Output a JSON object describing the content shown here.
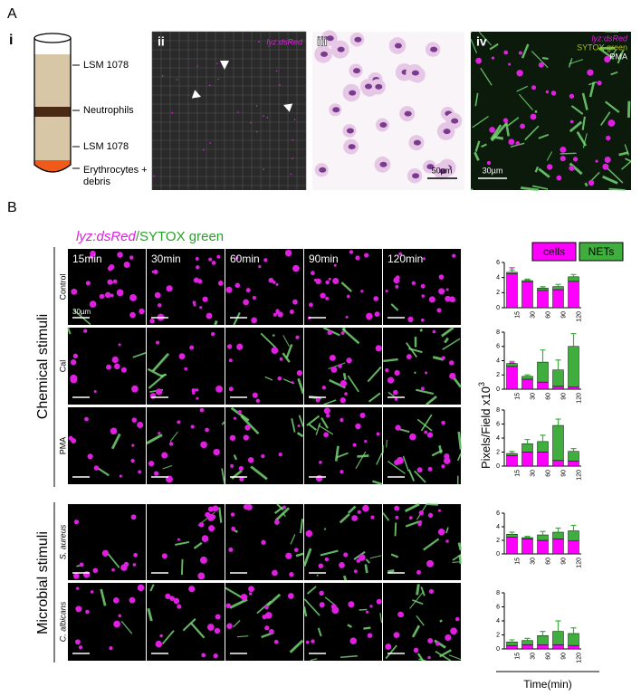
{
  "figure": {
    "panel_a": {
      "label": "A",
      "sub_labels": [
        "i",
        "ii",
        "iii",
        "iv"
      ],
      "tube_labels": [
        "LSM 1078",
        "Neutrophils",
        "LSM 1078",
        "Erythrocytes +",
        "debris"
      ],
      "image_ii_label": "lyz:dsRed",
      "image_iii_scale": "50µm",
      "image_iv_labels": [
        "lyz:dsRed",
        "SYTOX green",
        "PMA"
      ],
      "image_iv_scale": "30µm"
    },
    "panel_b": {
      "label": "B",
      "heading": [
        "lyz:dsRed",
        "/SYTOX green"
      ],
      "times": [
        "15min",
        "30min",
        "60min",
        "90min",
        "120min"
      ],
      "rows": [
        "Control",
        "Cal",
        "PMA",
        "S. aureus",
        "C. albicans"
      ],
      "groups": [
        "Chemical stimuli",
        "Microbial stimuli"
      ],
      "scale": "30µm",
      "y_label": "Pixels/Field x10",
      "y_label_exp": "3",
      "x_label": "Time(min)"
    }
  },
  "chart_data": [
    {
      "type": "bar",
      "stacked": true,
      "legend": true,
      "categories": [
        "15",
        "30",
        "60",
        "90",
        "120"
      ],
      "ylim": [
        0,
        6
      ],
      "yticks": [
        0,
        2,
        4,
        6
      ],
      "series": [
        {
          "name": "cells",
          "color": "#ff00ff",
          "values": [
            4.5,
            3.4,
            2.3,
            2.4,
            3.5
          ],
          "errors": [
            0.8,
            0.3,
            0.3,
            0.3,
            0.4
          ]
        },
        {
          "name": "NETs",
          "color": "#3fae3f",
          "values": [
            0.2,
            0.2,
            0.3,
            0.4,
            0.6
          ],
          "errors": [
            0.3,
            0.2,
            0.2,
            0.3,
            0.3
          ]
        }
      ]
    },
    {
      "type": "bar",
      "stacked": true,
      "categories": [
        "15",
        "30",
        "60",
        "90",
        "120"
      ],
      "ylim": [
        0,
        8
      ],
      "yticks": [
        0,
        2,
        4,
        6,
        8
      ],
      "series": [
        {
          "color": "#ff00ff",
          "values": [
            3.2,
            1.4,
            1.0,
            0.4,
            0.3
          ],
          "errors": [
            0.5,
            0.2,
            0.3,
            0.3,
            0.2
          ]
        },
        {
          "color": "#3fae3f",
          "values": [
            0.4,
            0.4,
            2.8,
            2.3,
            5.7
          ],
          "errors": [
            0.3,
            0.2,
            1.7,
            1.4,
            1.8
          ]
        }
      ]
    },
    {
      "type": "bar",
      "stacked": true,
      "categories": [
        "15",
        "30",
        "60",
        "90",
        "120"
      ],
      "ylim": [
        0,
        8
      ],
      "yticks": [
        0,
        2,
        4,
        6,
        8
      ],
      "series": [
        {
          "color": "#ff00ff",
          "values": [
            1.5,
            2.0,
            2.0,
            0.8,
            0.7
          ],
          "errors": [
            0.3,
            0.8,
            0.9,
            0.3,
            0.3
          ]
        },
        {
          "color": "#3fae3f",
          "values": [
            0.3,
            1.2,
            1.5,
            5.0,
            1.4
          ],
          "errors": [
            0.3,
            0.6,
            0.9,
            0.9,
            0.4
          ]
        }
      ]
    },
    {
      "type": "bar",
      "stacked": true,
      "categories": [
        "15",
        "30",
        "60",
        "90",
        "120"
      ],
      "ylim": [
        0,
        6
      ],
      "yticks": [
        0,
        2,
        4,
        6
      ],
      "series": [
        {
          "color": "#ff00ff",
          "values": [
            2.5,
            2.2,
            2.0,
            2.2,
            1.9
          ],
          "errors": [
            0.2,
            0.2,
            0.3,
            0.3,
            0.4
          ]
        },
        {
          "color": "#3fae3f",
          "values": [
            0.4,
            0.2,
            0.8,
            1.0,
            1.5
          ],
          "errors": [
            0.3,
            0.2,
            0.5,
            0.6,
            0.8
          ]
        }
      ]
    },
    {
      "type": "bar",
      "stacked": true,
      "categories": [
        "15",
        "30",
        "60",
        "90",
        "120"
      ],
      "ylim": [
        0,
        8
      ],
      "yticks": [
        0,
        2,
        4,
        6,
        8
      ],
      "series": [
        {
          "color": "#ff00ff",
          "values": [
            0.5,
            0.6,
            0.6,
            0.6,
            0.5
          ],
          "errors": [
            0.1,
            0.1,
            0.2,
            0.2,
            0.2
          ]
        },
        {
          "color": "#3fae3f",
          "values": [
            0.5,
            0.6,
            1.3,
            1.9,
            1.7
          ],
          "errors": [
            0.3,
            0.3,
            0.6,
            1.5,
            0.8
          ]
        }
      ]
    }
  ]
}
